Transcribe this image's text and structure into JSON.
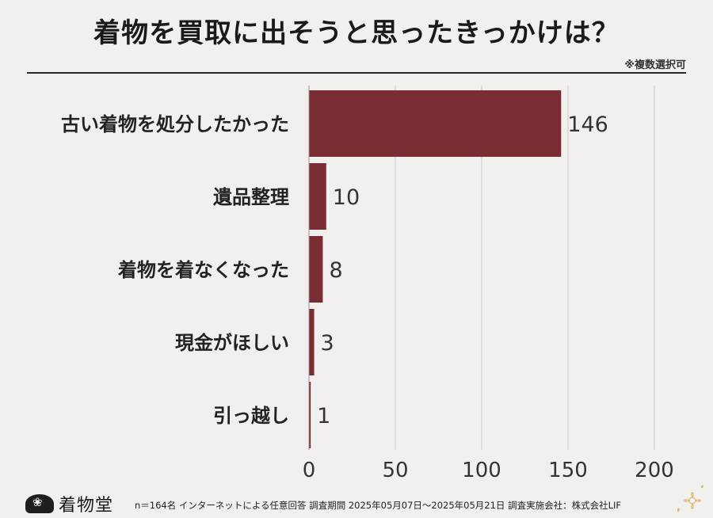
{
  "title": "着物を買取に出そうと思ったきっかけは？",
  "note": "※複数選択可",
  "chart_data": {
    "type": "bar",
    "orientation": "horizontal",
    "categories": [
      "古い着物を処分したかった",
      "遺品整理",
      "着物を着なくなった",
      "現金がほしい",
      "引っ越し"
    ],
    "values": [
      146,
      10,
      8,
      3,
      1
    ],
    "xlim": [
      0,
      200
    ],
    "xticks": [
      0,
      50,
      100,
      150,
      200
    ],
    "grid": "vertical",
    "bar_color": "#7a2d33"
  },
  "footer": {
    "logo_text": "着物堂",
    "survey_info": "n＝164名 インターネットによる任意回答 調査期間 2025年05月07日〜2025年05月21日 調査実施会社：株式会社LIF"
  },
  "colors": {
    "bar": "#7a2d33",
    "grid": "#c9c9c9",
    "text": "#222222"
  }
}
